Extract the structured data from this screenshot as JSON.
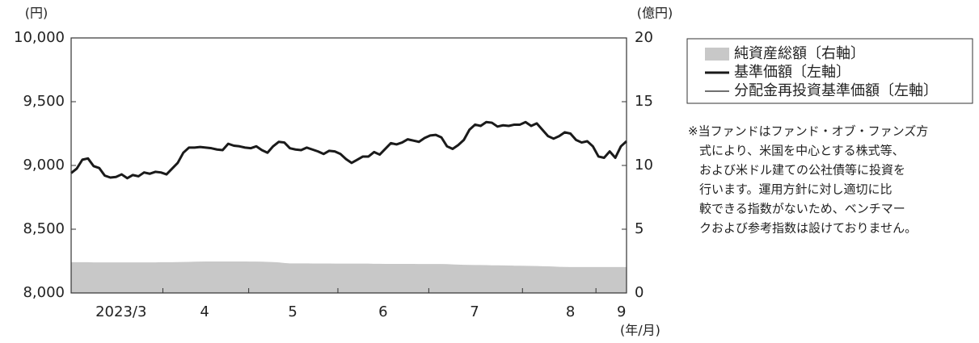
{
  "chart_data": {
    "type": "line",
    "left_unit": "(円)",
    "right_unit": "(億円)",
    "x_unit": "(年/月)",
    "xticks": [
      {
        "value": 8.9,
        "label": "2023/3"
      },
      {
        "value": 23.8,
        "label": "4"
      },
      {
        "value": 39.5,
        "label": "5"
      },
      {
        "value": 55.6,
        "label": "6"
      },
      {
        "value": 71.9,
        "label": "7"
      },
      {
        "value": 89,
        "label": "8"
      },
      {
        "value": 98.1,
        "label": "9"
      }
    ],
    "xlim": [
      0,
      99
    ],
    "ylim": [
      8000,
      10000
    ],
    "yticks": [
      {
        "value": 8000,
        "label": "8,000"
      },
      {
        "value": 8500,
        "label": "8,500"
      },
      {
        "value": 9000,
        "label": "9,000"
      },
      {
        "value": 9500,
        "label": "9,500"
      },
      {
        "value": 10000,
        "label": "10,000"
      }
    ],
    "y2lim": [
      0,
      20
    ],
    "y2ticks": [
      0,
      5,
      10,
      15,
      20
    ],
    "legend": "outside-right",
    "series": [
      {
        "name": "純資産総額〔右軸〕",
        "type": "area",
        "axis": "y2",
        "color": "#c8c8c8",
        "values": [
          2.41,
          2.41,
          2.41,
          2.41,
          2.4,
          2.4,
          2.4,
          2.4,
          2.4,
          2.4,
          2.4,
          2.4,
          2.4,
          2.4,
          2.4,
          2.4,
          2.41,
          2.41,
          2.41,
          2.42,
          2.43,
          2.44,
          2.45,
          2.46,
          2.47,
          2.47,
          2.47,
          2.47,
          2.47,
          2.47,
          2.47,
          2.47,
          2.46,
          2.46,
          2.45,
          2.44,
          2.42,
          2.4,
          2.35,
          2.32,
          2.32,
          2.32,
          2.32,
          2.31,
          2.31,
          2.31,
          2.31,
          2.3,
          2.3,
          2.3,
          2.3,
          2.3,
          2.3,
          2.3,
          2.29,
          2.29,
          2.28,
          2.28,
          2.28,
          2.28,
          2.28,
          2.28,
          2.27,
          2.27,
          2.27,
          2.27,
          2.27,
          2.26,
          2.24,
          2.22,
          2.21,
          2.2,
          2.19,
          2.19,
          2.18,
          2.17,
          2.17,
          2.16,
          2.15,
          2.14,
          2.14,
          2.13,
          2.12,
          2.11,
          2.1,
          2.09,
          2.07,
          2.05,
          2.04,
          2.03,
          2.03,
          2.03,
          2.03,
          2.03,
          2.03,
          2.03,
          2.03,
          2.03,
          2.03,
          2.03
        ]
      },
      {
        "name": "分配金再投資基準価額〔左軸〕",
        "type": "line",
        "width": 1.2,
        "color": "#1a1a1a",
        "values": [
          8940,
          8975,
          9045,
          9055,
          8995,
          8980,
          8920,
          8905,
          8910,
          8930,
          8900,
          8925,
          8915,
          8945,
          8935,
          8950,
          8945,
          8930,
          8975,
          9020,
          9100,
          9140,
          9140,
          9145,
          9140,
          9135,
          9125,
          9120,
          9170,
          9155,
          9150,
          9140,
          9135,
          9150,
          9120,
          9100,
          9150,
          9185,
          9180,
          9135,
          9125,
          9120,
          9140,
          9125,
          9110,
          9090,
          9115,
          9110,
          9090,
          9050,
          9020,
          9045,
          9070,
          9070,
          9105,
          9085,
          9130,
          9175,
          9165,
          9180,
          9205,
          9195,
          9185,
          9215,
          9235,
          9240,
          9220,
          9150,
          9130,
          9160,
          9200,
          9280,
          9320,
          9310,
          9340,
          9335,
          9305,
          9315,
          9310,
          9320,
          9320,
          9340,
          9310,
          9330,
          9280,
          9230,
          9210,
          9230,
          9260,
          9250,
          9200,
          9180,
          9190,
          9150,
          9070,
          9060,
          9110,
          9060,
          9150,
          9190
        ]
      },
      {
        "name": "基準価額〔左軸〕",
        "type": "line",
        "width": 3,
        "color": "#1a1a1a",
        "values": [
          8940,
          8975,
          9045,
          9055,
          8995,
          8980,
          8920,
          8905,
          8910,
          8930,
          8900,
          8925,
          8915,
          8945,
          8935,
          8950,
          8945,
          8930,
          8975,
          9020,
          9100,
          9140,
          9140,
          9145,
          9140,
          9135,
          9125,
          9120,
          9170,
          9155,
          9150,
          9140,
          9135,
          9150,
          9120,
          9100,
          9150,
          9185,
          9180,
          9135,
          9125,
          9120,
          9140,
          9125,
          9110,
          9090,
          9115,
          9110,
          9090,
          9050,
          9020,
          9045,
          9070,
          9070,
          9105,
          9085,
          9130,
          9175,
          9165,
          9180,
          9205,
          9195,
          9185,
          9215,
          9235,
          9240,
          9220,
          9150,
          9130,
          9160,
          9200,
          9280,
          9320,
          9310,
          9340,
          9335,
          9305,
          9315,
          9310,
          9320,
          9320,
          9340,
          9310,
          9330,
          9280,
          9230,
          9210,
          9230,
          9260,
          9250,
          9200,
          9180,
          9190,
          9150,
          9070,
          9060,
          9110,
          9060,
          9150,
          9190
        ]
      }
    ],
    "note": [
      "※当ファンドはファンド・オブ・ファンズ方",
      "式により、米国を中心とする株式等、",
      "および米ドル建ての公社債等に投資を",
      "行います。運用方針に対し適切に比",
      "較できる指数がないため、ベンチマー",
      "クおよび参考指数は設けておりません。"
    ]
  }
}
